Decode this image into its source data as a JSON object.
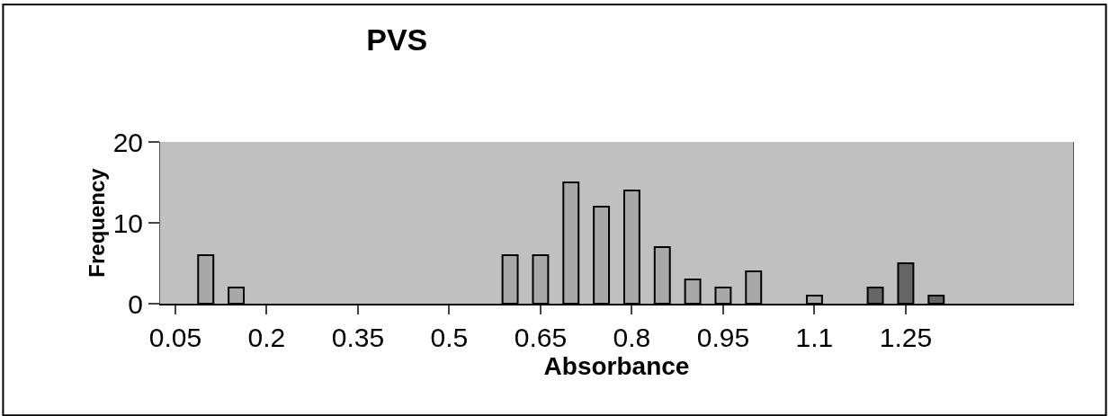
{
  "chart_data": {
    "type": "bar",
    "title": "PVS",
    "xlabel": "Absorbance",
    "ylabel": "Frequency",
    "categories": [
      "0.05",
      null,
      null,
      "0.2",
      null,
      null,
      "0.35",
      null,
      null,
      "0.5",
      null,
      null,
      "0.65",
      null,
      null,
      "0.8",
      null,
      null,
      "0.95",
      null,
      null,
      "1.1",
      null,
      null,
      "1.25",
      null,
      null,
      null,
      null,
      null
    ],
    "values": [
      null,
      6,
      2,
      null,
      null,
      null,
      null,
      null,
      null,
      null,
      null,
      6,
      6,
      15,
      12,
      14,
      7,
      3,
      2,
      4,
      null,
      1,
      null,
      2,
      5,
      1,
      null,
      null,
      null,
      null
    ],
    "colors": [
      "#a8a8a8",
      "#a8a8a8",
      "#a8a8a8",
      "#a8a8a8",
      "#a8a8a8",
      "#a8a8a8",
      "#a8a8a8",
      "#a8a8a8",
      "#a8a8a8",
      "#a8a8a8",
      "#a8a8a8",
      "#a8a8a8",
      "#a8a8a8",
      "#a8a8a8",
      "#a8a8a8",
      "#a8a8a8",
      "#a8a8a8",
      "#a8a8a8",
      "#a8a8a8",
      "#a8a8a8",
      "#a8a8a8",
      "#a8a8a8",
      "#a8a8a8",
      "#666666",
      "#666666",
      "#666666",
      "#666666",
      "#666666",
      "#666666",
      "#666666"
    ],
    "ylim": [
      0,
      20
    ],
    "yticks": [
      0,
      10,
      20
    ]
  }
}
